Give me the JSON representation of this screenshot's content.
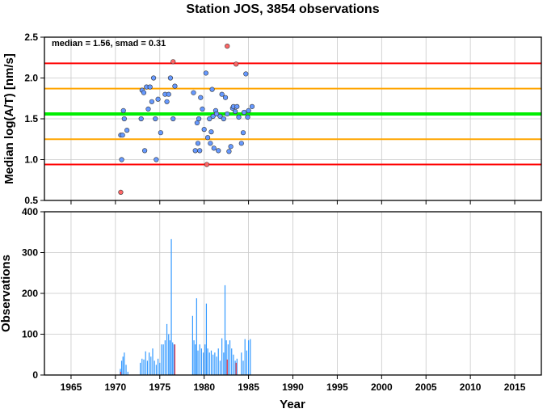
{
  "chart_data": [
    {
      "type": "scatter",
      "title": "Station JOS, 3854 observations",
      "annotation": "median = 1.56, smad = 0.31",
      "ylabel": "Median log(A/T) [nm/s]",
      "xlim": [
        1962,
        2018
      ],
      "ylim": [
        0.5,
        2.5
      ],
      "yticks": [
        "0.5",
        "1.0",
        "1.5",
        "2.0",
        "2.5"
      ],
      "grid": true,
      "reference_lines": [
        {
          "y": 2.18,
          "color": "#ff0000"
        },
        {
          "y": 1.87,
          "color": "#ffa500"
        },
        {
          "y": 1.56,
          "color": "#00ee00"
        },
        {
          "y": 1.25,
          "color": "#ffa500"
        },
        {
          "y": 0.94,
          "color": "#ff0000"
        }
      ],
      "series": [
        {
          "color": "#6699ff",
          "points": [
            [
              1970.6,
              1.3
            ],
            [
              1970.7,
              1.0
            ],
            [
              1970.8,
              1.3
            ],
            [
              1970.9,
              1.6
            ],
            [
              1971.0,
              1.5
            ],
            [
              1971.3,
              1.36
            ],
            [
              1972.9,
              1.5
            ],
            [
              1973.0,
              1.85
            ],
            [
              1973.2,
              1.82
            ],
            [
              1973.3,
              1.11
            ],
            [
              1973.5,
              1.89
            ],
            [
              1973.7,
              1.62
            ],
            [
              1973.9,
              1.89
            ],
            [
              1974.1,
              1.71
            ],
            [
              1974.3,
              2.0
            ],
            [
              1974.5,
              1.5
            ],
            [
              1974.6,
              1.0
            ],
            [
              1974.8,
              1.74
            ],
            [
              1975.1,
              1.33
            ],
            [
              1975.6,
              1.8
            ],
            [
              1975.8,
              1.71
            ],
            [
              1976.0,
              1.8
            ],
            [
              1976.2,
              2.0
            ],
            [
              1976.5,
              1.5
            ],
            [
              1976.7,
              1.9
            ],
            [
              1978.8,
              1.82
            ],
            [
              1979.0,
              1.11
            ],
            [
              1979.2,
              1.45
            ],
            [
              1979.3,
              1.2
            ],
            [
              1979.4,
              1.5
            ],
            [
              1979.5,
              1.11
            ],
            [
              1979.6,
              1.76
            ],
            [
              1979.8,
              1.62
            ],
            [
              1980.0,
              1.37
            ],
            [
              1980.2,
              2.06
            ],
            [
              1980.4,
              1.27
            ],
            [
              1980.6,
              1.5
            ],
            [
              1980.7,
              1.2
            ],
            [
              1980.8,
              1.34
            ],
            [
              1980.9,
              1.86
            ],
            [
              1981.0,
              1.53
            ],
            [
              1981.1,
              1.14
            ],
            [
              1981.3,
              1.6
            ],
            [
              1981.4,
              1.56
            ],
            [
              1981.6,
              1.11
            ],
            [
              1981.8,
              1.53
            ],
            [
              1982.0,
              1.8
            ],
            [
              1982.2,
              1.5
            ],
            [
              1982.4,
              1.76
            ],
            [
              1982.6,
              1.56
            ],
            [
              1982.8,
              1.1
            ],
            [
              1983.0,
              1.16
            ],
            [
              1983.2,
              1.63
            ],
            [
              1983.3,
              1.65
            ],
            [
              1983.5,
              1.59
            ],
            [
              1983.7,
              1.65
            ],
            [
              1983.9,
              1.52
            ],
            [
              1984.2,
              1.2
            ],
            [
              1984.4,
              1.33
            ],
            [
              1984.5,
              1.58
            ],
            [
              1984.7,
              2.05
            ],
            [
              1984.9,
              1.52
            ],
            [
              1985.0,
              1.6
            ],
            [
              1985.4,
              1.65
            ]
          ]
        },
        {
          "color": "#ff6666",
          "points": [
            [
              1970.6,
              0.6
            ],
            [
              1976.5,
              2.2
            ],
            [
              1980.3,
              0.94
            ],
            [
              1982.6,
              2.39
            ],
            [
              1983.6,
              2.17
            ]
          ]
        }
      ]
    },
    {
      "type": "bar",
      "xlabel": "Year",
      "ylabel": "Observations",
      "xlim": [
        1962,
        2018
      ],
      "ylim": [
        0,
        400
      ],
      "xticks": [
        "1965",
        "1970",
        "1975",
        "1980",
        "1985",
        "1990",
        "1995",
        "2000",
        "2005",
        "2010",
        "2015"
      ],
      "yticks": [
        "0",
        "100",
        "200",
        "300",
        "400"
      ],
      "grid": true,
      "series": [
        {
          "color": "#3399ff",
          "points": [
            [
              1970.55,
              15
            ],
            [
              1970.7,
              35
            ],
            [
              1970.85,
              45
            ],
            [
              1971.0,
              55
            ],
            [
              1971.2,
              25
            ],
            [
              1971.4,
              8
            ],
            [
              1972.8,
              30
            ],
            [
              1973.0,
              40
            ],
            [
              1973.2,
              38
            ],
            [
              1973.4,
              58
            ],
            [
              1973.6,
              35
            ],
            [
              1973.8,
              55
            ],
            [
              1974.0,
              45
            ],
            [
              1974.2,
              65
            ],
            [
              1974.4,
              35
            ],
            [
              1974.6,
              25
            ],
            [
              1974.8,
              40
            ],
            [
              1975.0,
              30
            ],
            [
              1975.2,
              75
            ],
            [
              1975.4,
              75
            ],
            [
              1975.6,
              85
            ],
            [
              1975.8,
              125
            ],
            [
              1976.0,
              100
            ],
            [
              1976.15,
              85
            ],
            [
              1976.3,
              333
            ],
            [
              1976.45,
              80
            ],
            [
              1976.6,
              75
            ],
            [
              1978.7,
              145
            ],
            [
              1978.85,
              85
            ],
            [
              1979.0,
              75
            ],
            [
              1979.15,
              188
            ],
            [
              1979.3,
              60
            ],
            [
              1979.5,
              75
            ],
            [
              1979.7,
              65
            ],
            [
              1979.9,
              55
            ],
            [
              1980.1,
              75
            ],
            [
              1980.25,
              175
            ],
            [
              1980.4,
              65
            ],
            [
              1980.6,
              55
            ],
            [
              1980.8,
              60
            ],
            [
              1981.0,
              50
            ],
            [
              1981.2,
              55
            ],
            [
              1981.4,
              45
            ],
            [
              1981.6,
              65
            ],
            [
              1981.8,
              35
            ],
            [
              1982.0,
              90
            ],
            [
              1982.2,
              55
            ],
            [
              1982.35,
              220
            ],
            [
              1982.5,
              85
            ],
            [
              1982.7,
              75
            ],
            [
              1982.9,
              85
            ],
            [
              1983.1,
              65
            ],
            [
              1983.3,
              50
            ],
            [
              1983.5,
              35
            ],
            [
              1983.7,
              40
            ],
            [
              1984.2,
              55
            ],
            [
              1984.4,
              35
            ],
            [
              1984.6,
              88
            ],
            [
              1984.8,
              60
            ],
            [
              1985.0,
              85
            ],
            [
              1985.2,
              88
            ]
          ]
        },
        {
          "color": "#ff3333",
          "points": [
            [
              1970.6,
              8
            ],
            [
              1976.7,
              75
            ],
            [
              1982.6,
              38
            ],
            [
              1983.6,
              30
            ]
          ]
        }
      ]
    }
  ]
}
